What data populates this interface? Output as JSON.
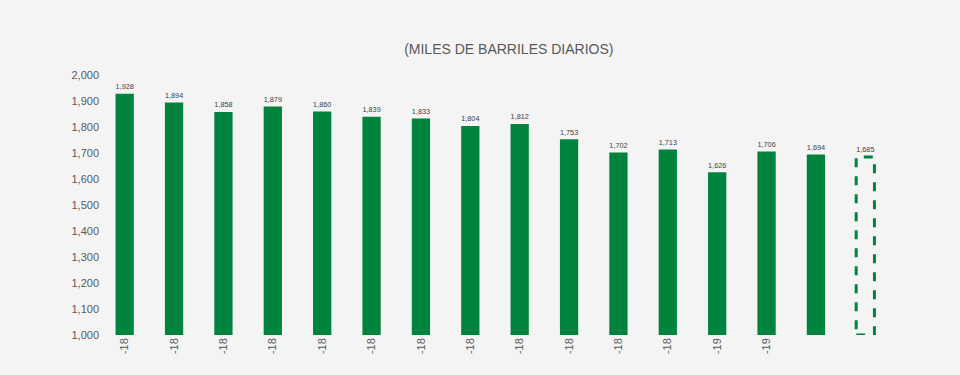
{
  "chart_data": {
    "type": "bar",
    "title": "(MILES DE BARRILES DIARIOS)",
    "categories": [
      "-18",
      "-18",
      "-18",
      "-18",
      "-18",
      "-18",
      "-18",
      "-18",
      "-18",
      "-18",
      "-18",
      "-18",
      "-19",
      "-19",
      null,
      null
    ],
    "series": [
      {
        "color": "#00843d",
        "values": [
          1928,
          1894,
          1858,
          1879,
          1860,
          1839,
          1833,
          1804,
          1812,
          1753,
          1702,
          1713,
          1626,
          1706,
          1694,
          null
        ],
        "value_labels": [
          "1,928",
          "1,894",
          "1,858",
          "1,879",
          "1,860",
          "1,839",
          "1,833",
          "1,804",
          "1,812",
          "1,753",
          "1,702",
          "1,713",
          "1,626",
          "1,706",
          "1,694",
          null
        ]
      },
      {
        "color": "#00843d",
        "line_style": "dashed",
        "values": [
          null,
          null,
          null,
          null,
          null,
          null,
          null,
          null,
          null,
          null,
          null,
          null,
          null,
          null,
          null,
          1685
        ],
        "value_labels": [
          null,
          null,
          null,
          null,
          null,
          null,
          null,
          null,
          null,
          null,
          null,
          null,
          null,
          null,
          null,
          "1,685"
        ]
      }
    ],
    "ylim": [
      1000,
      2000
    ],
    "yticks": [
      {
        "value": 1000,
        "label": "1,000"
      },
      {
        "value": 1100,
        "label": "1,100"
      },
      {
        "value": 1200,
        "label": "1,200"
      },
      {
        "value": 1300,
        "label": "1,300"
      },
      {
        "value": 1400,
        "label": "1,400"
      },
      {
        "value": 1500,
        "label": "1,500"
      },
      {
        "value": 1600,
        "label": "1,600"
      },
      {
        "value": 1700,
        "label": "1,700"
      },
      {
        "value": 1800,
        "label": "1,800"
      },
      {
        "value": 1900,
        "label": "1,900"
      },
      {
        "value": 2000,
        "label": "2,000"
      }
    ],
    "grid": false,
    "data_labels": true
  }
}
